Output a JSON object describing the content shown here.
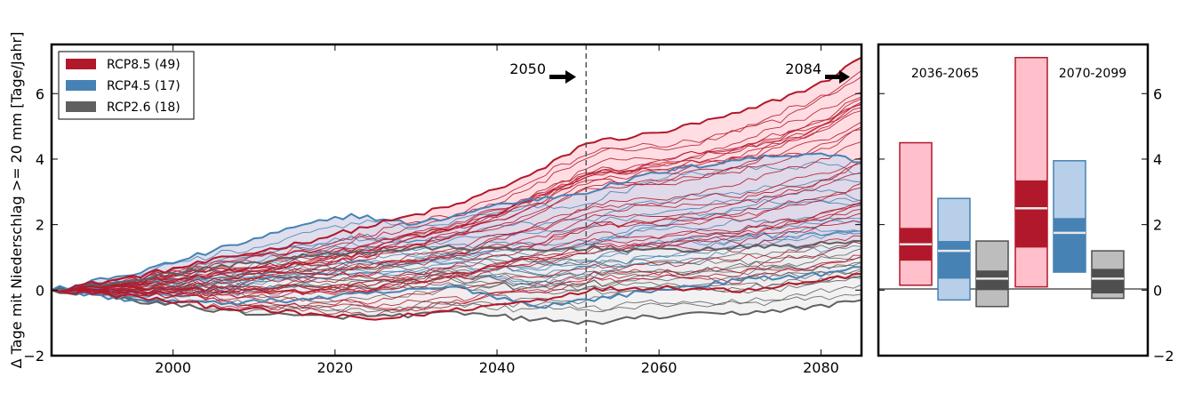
{
  "chart_data": [
    {
      "type": "line",
      "ylabel": "Δ Tage mit Niederschlag >= 20 mm [Tage/Jahr]",
      "xlim": [
        1985,
        2085
      ],
      "ylim": [
        -2,
        7.5
      ],
      "x_ticks": [
        2000,
        2020,
        2040,
        2060,
        2080
      ],
      "y_ticks": [
        -2,
        0,
        2,
        4,
        6
      ],
      "legend_position": "top-left",
      "legend": [
        {
          "label": "RCP8.5 (49)",
          "color": "#b2182b"
        },
        {
          "label": "RCP4.5 (17)",
          "color": "#4682b4"
        },
        {
          "label": "RCP2.6 (18)",
          "color": "#606060"
        }
      ],
      "annotations": [
        {
          "text": "2050",
          "x": 2051,
          "y": 6.5
        },
        {
          "text": "2084",
          "x": 2085,
          "y": 6.5
        }
      ],
      "vlines": [
        2051,
        2085
      ],
      "series": [
        {
          "scenario": "RCP8.5",
          "color": "#b2182b",
          "fill": "#ffdde3",
          "count": 49,
          "upper": [
            [
              1985,
              0
            ],
            [
              1995,
              0.4
            ],
            [
              2005,
              0.9
            ],
            [
              2015,
              1.4
            ],
            [
              2025,
              2.0
            ],
            [
              2035,
              2.6
            ],
            [
              2045,
              3.6
            ],
            [
              2051,
              4.5
            ],
            [
              2060,
              4.8
            ],
            [
              2070,
              5.4
            ],
            [
              2080,
              6.3
            ],
            [
              2085,
              7.1
            ]
          ],
          "lower": [
            [
              1985,
              0
            ],
            [
              1995,
              -0.2
            ],
            [
              2005,
              -0.5
            ],
            [
              2015,
              -0.7
            ],
            [
              2025,
              -0.9
            ],
            [
              2035,
              -0.6
            ],
            [
              2045,
              -0.3
            ],
            [
              2051,
              0
            ],
            [
              2060,
              0.1
            ],
            [
              2070,
              0.0
            ],
            [
              2080,
              0.3
            ],
            [
              2085,
              0.5
            ]
          ],
          "median": [
            [
              1985,
              0
            ],
            [
              2000,
              0.4
            ],
            [
              2020,
              0.9
            ],
            [
              2040,
              1.4
            ],
            [
              2060,
              1.9
            ],
            [
              2085,
              2.5
            ]
          ]
        },
        {
          "scenario": "RCP4.5",
          "color": "#4682b4",
          "fill": "#d9d8ea",
          "count": 17,
          "upper": [
            [
              1985,
              0
            ],
            [
              1995,
              0.5
            ],
            [
              2005,
              1.2
            ],
            [
              2015,
              1.9
            ],
            [
              2022,
              2.3
            ],
            [
              2030,
              2.0
            ],
            [
              2040,
              2.6
            ],
            [
              2051,
              3.0
            ],
            [
              2060,
              3.6
            ],
            [
              2070,
              4.0
            ],
            [
              2080,
              4.2
            ],
            [
              2085,
              3.9
            ]
          ],
          "lower": [
            [
              1985,
              0
            ],
            [
              1995,
              -0.3
            ],
            [
              2005,
              -0.4
            ],
            [
              2015,
              -0.3
            ],
            [
              2025,
              -0.1
            ],
            [
              2035,
              0.1
            ],
            [
              2045,
              -0.5
            ],
            [
              2051,
              -0.3
            ],
            [
              2060,
              0.0
            ],
            [
              2070,
              0.3
            ],
            [
              2080,
              0.5
            ],
            [
              2085,
              0.7
            ]
          ],
          "median": [
            [
              1985,
              0
            ],
            [
              2000,
              0.4
            ],
            [
              2020,
              0.8
            ],
            [
              2040,
              1.0
            ],
            [
              2060,
              1.3
            ],
            [
              2085,
              1.7
            ]
          ]
        },
        {
          "scenario": "RCP2.6",
          "color": "#606060",
          "fill": "#f0f0f0",
          "count": 18,
          "upper": [
            [
              1985,
              0
            ],
            [
              1995,
              0.3
            ],
            [
              2005,
              0.7
            ],
            [
              2015,
              1.0
            ],
            [
              2025,
              1.2
            ],
            [
              2035,
              1.3
            ],
            [
              2045,
              1.2
            ],
            [
              2051,
              1.3
            ],
            [
              2060,
              1.2
            ],
            [
              2070,
              1.3
            ],
            [
              2080,
              1.4
            ],
            [
              2085,
              1.5
            ]
          ],
          "lower": [
            [
              1985,
              0
            ],
            [
              1995,
              -0.3
            ],
            [
              2005,
              -0.6
            ],
            [
              2015,
              -0.8
            ],
            [
              2025,
              -0.8
            ],
            [
              2035,
              -0.7
            ],
            [
              2045,
              -0.9
            ],
            [
              2051,
              -1.0
            ],
            [
              2060,
              -0.8
            ],
            [
              2070,
              -0.7
            ],
            [
              2080,
              -0.5
            ],
            [
              2085,
              -0.3
            ]
          ],
          "median": [
            [
              1985,
              0
            ],
            [
              2000,
              0.3
            ],
            [
              2020,
              0.4
            ],
            [
              2040,
              0.4
            ],
            [
              2060,
              0.4
            ],
            [
              2085,
              0.4
            ]
          ]
        }
      ]
    },
    {
      "type": "bar",
      "subtype": "range-box",
      "ylim": [
        -2,
        7.5
      ],
      "y_ticks": [
        -2,
        0,
        2,
        4,
        6
      ],
      "periods": [
        "2036-2065",
        "2070-2099"
      ],
      "boxes": [
        {
          "period": "2036-2065",
          "scenario": "RCP8.5",
          "light": "#ffc0cb",
          "dark": "#b2182b",
          "min": 0.15,
          "p25": 0.9,
          "median": 1.4,
          "p75": 1.9,
          "max": 4.5
        },
        {
          "period": "2036-2065",
          "scenario": "RCP4.5",
          "light": "#b7cfe8",
          "dark": "#4682b4",
          "min": -0.3,
          "p25": 0.35,
          "median": 1.2,
          "p75": 1.5,
          "max": 2.8
        },
        {
          "period": "2036-2065",
          "scenario": "RCP2.6",
          "light": "#bdbdbd",
          "dark": "#4f4f4f",
          "min": -0.5,
          "p25": 0.0,
          "median": 0.35,
          "p75": 0.6,
          "max": 1.5
        },
        {
          "period": "2070-2099",
          "scenario": "RCP8.5",
          "light": "#ffc0cb",
          "dark": "#b2182b",
          "min": 0.1,
          "p25": 1.3,
          "median": 2.5,
          "p75": 3.35,
          "max": 7.1
        },
        {
          "period": "2070-2099",
          "scenario": "RCP4.5",
          "light": "#b7cfe8",
          "dark": "#4682b4",
          "min": 0.55,
          "p25": 0.55,
          "median": 1.75,
          "p75": 2.2,
          "max": 3.95
        },
        {
          "period": "2070-2099",
          "scenario": "RCP2.6",
          "light": "#bdbdbd",
          "dark": "#4f4f4f",
          "min": -0.25,
          "p25": -0.1,
          "median": 0.35,
          "p75": 0.65,
          "max": 1.2
        }
      ]
    }
  ]
}
